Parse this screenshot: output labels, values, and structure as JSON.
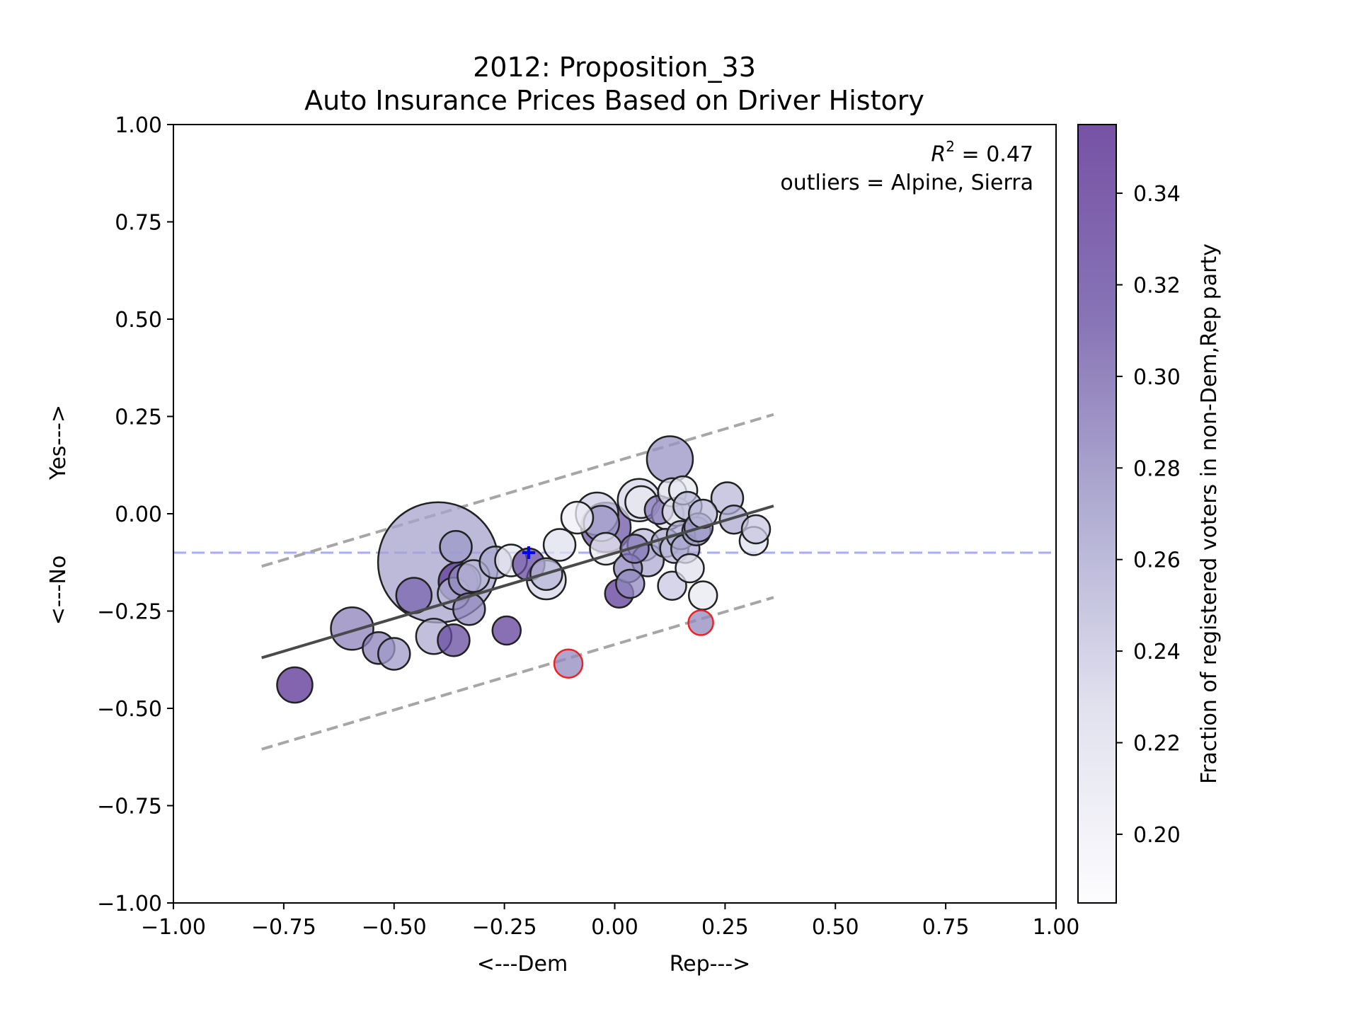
{
  "chart_data": {
    "type": "scatter",
    "title": "2012: Proposition_33",
    "subtitle": "Auto Insurance Prices Based on Driver History",
    "xlabel_left": "<---Dem",
    "xlabel_right": "Rep--->",
    "ylabel_bottom": "<---No",
    "ylabel_top": "Yes--->",
    "xlim": [
      -1.0,
      1.0
    ],
    "ylim": [
      -1.0,
      1.0
    ],
    "xticks": [
      "−1.00",
      "−0.75",
      "−0.50",
      "−0.25",
      "0.00",
      "0.25",
      "0.50",
      "0.75",
      "1.00"
    ],
    "yticks": [
      "−1.00",
      "−0.75",
      "−0.50",
      "−0.25",
      "0.00",
      "0.25",
      "0.50",
      "0.75",
      "1.00"
    ],
    "annotation_r2_prefix": "R",
    "annotation_r2_sup": "2",
    "annotation_r2_value": " = 0.47",
    "annotation_outliers": "outliers = Alpine, Sierra",
    "colorbar": {
      "label": "Fraction of registered voters in non-Dem,Rep party",
      "range": [
        0.185,
        0.355
      ],
      "ticks": [
        "0.20",
        "0.22",
        "0.24",
        "0.26",
        "0.28",
        "0.30",
        "0.32",
        "0.34"
      ],
      "colors": [
        "#fcfbfd",
        "#dadaeb",
        "#9e9ac8",
        "#6a51a3",
        "#54278f"
      ]
    },
    "fit_line": {
      "x": [
        -0.8,
        0.36
      ],
      "y": [
        -0.37,
        0.02
      ],
      "color": "#4a4a4a"
    },
    "upper_band": {
      "x": [
        -0.8,
        0.36
      ],
      "y": [
        -0.135,
        0.255
      ],
      "color": "#a6a6a6"
    },
    "lower_band": {
      "x": [
        -0.8,
        0.36
      ],
      "y": [
        -0.605,
        -0.215
      ],
      "color": "#a6a6a6"
    },
    "reference_line": {
      "y": -0.1,
      "color": "#aaaaff"
    },
    "reference_marker": {
      "x": -0.195,
      "y": -0.1,
      "symbol": "+",
      "color": "#0000ff"
    },
    "points": [
      {
        "x": -0.4,
        "y": -0.125,
        "c": 0.265,
        "s": 34
      },
      {
        "x": -0.725,
        "y": -0.44,
        "c": 0.345,
        "s": 10
      },
      {
        "x": -0.595,
        "y": -0.295,
        "c": 0.285,
        "s": 12
      },
      {
        "x": -0.535,
        "y": -0.345,
        "c": 0.285,
        "s": 9
      },
      {
        "x": -0.5,
        "y": -0.36,
        "c": 0.27,
        "s": 9
      },
      {
        "x": -0.455,
        "y": -0.21,
        "c": 0.3,
        "s": 10
      },
      {
        "x": -0.41,
        "y": -0.315,
        "c": 0.26,
        "s": 10
      },
      {
        "x": -0.365,
        "y": -0.325,
        "c": 0.32,
        "s": 9
      },
      {
        "x": -0.365,
        "y": -0.205,
        "c": 0.25,
        "s": 9
      },
      {
        "x": -0.36,
        "y": -0.085,
        "c": 0.27,
        "s": 9
      },
      {
        "x": -0.355,
        "y": -0.175,
        "c": 0.335,
        "s": 11
      },
      {
        "x": -0.34,
        "y": -0.17,
        "c": 0.28,
        "s": 9
      },
      {
        "x": -0.33,
        "y": -0.245,
        "c": 0.28,
        "s": 9
      },
      {
        "x": -0.32,
        "y": -0.16,
        "c": 0.25,
        "s": 9
      },
      {
        "x": -0.27,
        "y": -0.125,
        "c": 0.26,
        "s": 9
      },
      {
        "x": -0.245,
        "y": -0.3,
        "c": 0.33,
        "s": 8
      },
      {
        "x": -0.235,
        "y": -0.12,
        "c": 0.21,
        "s": 9
      },
      {
        "x": -0.195,
        "y": -0.13,
        "c": 0.32,
        "s": 9
      },
      {
        "x": -0.155,
        "y": -0.17,
        "c": 0.23,
        "s": 11
      },
      {
        "x": -0.155,
        "y": -0.155,
        "c": 0.25,
        "s": 9
      },
      {
        "x": -0.125,
        "y": -0.08,
        "c": 0.22,
        "s": 9
      },
      {
        "x": -0.105,
        "y": -0.385,
        "c": 0.28,
        "s": 8,
        "outlier": true
      },
      {
        "x": -0.085,
        "y": -0.01,
        "c": 0.2,
        "s": 9
      },
      {
        "x": -0.04,
        "y": 0.0,
        "c": 0.235,
        "s": 12
      },
      {
        "x": -0.03,
        "y": -0.025,
        "c": 0.27,
        "s": 10
      },
      {
        "x": -0.02,
        "y": -0.035,
        "c": 0.31,
        "s": 14
      },
      {
        "x": -0.02,
        "y": -0.09,
        "c": 0.21,
        "s": 9
      },
      {
        "x": 0.01,
        "y": -0.205,
        "c": 0.335,
        "s": 8
      },
      {
        "x": 0.03,
        "y": -0.14,
        "c": 0.28,
        "s": 8
      },
      {
        "x": 0.035,
        "y": -0.18,
        "c": 0.28,
        "s": 8
      },
      {
        "x": 0.045,
        "y": -0.09,
        "c": 0.29,
        "s": 8
      },
      {
        "x": 0.055,
        "y": 0.035,
        "c": 0.23,
        "s": 12
      },
      {
        "x": 0.06,
        "y": 0.03,
        "c": 0.21,
        "s": 9
      },
      {
        "x": 0.065,
        "y": -0.08,
        "c": 0.25,
        "s": 9
      },
      {
        "x": 0.075,
        "y": -0.12,
        "c": 0.26,
        "s": 9
      },
      {
        "x": 0.1,
        "y": 0.01,
        "c": 0.29,
        "s": 8
      },
      {
        "x": 0.115,
        "y": -0.075,
        "c": 0.26,
        "s": 8
      },
      {
        "x": 0.12,
        "y": 0.0,
        "c": 0.22,
        "s": 9
      },
      {
        "x": 0.125,
        "y": 0.14,
        "c": 0.275,
        "s": 13
      },
      {
        "x": 0.13,
        "y": 0.055,
        "c": 0.22,
        "s": 8
      },
      {
        "x": 0.13,
        "y": -0.185,
        "c": 0.24,
        "s": 8
      },
      {
        "x": 0.135,
        "y": -0.09,
        "c": 0.25,
        "s": 8
      },
      {
        "x": 0.14,
        "y": 0.005,
        "c": 0.21,
        "s": 8
      },
      {
        "x": 0.15,
        "y": -0.055,
        "c": 0.26,
        "s": 8
      },
      {
        "x": 0.155,
        "y": 0.06,
        "c": 0.21,
        "s": 8
      },
      {
        "x": 0.16,
        "y": -0.09,
        "c": 0.26,
        "s": 8
      },
      {
        "x": 0.165,
        "y": 0.02,
        "c": 0.25,
        "s": 8
      },
      {
        "x": 0.17,
        "y": -0.14,
        "c": 0.22,
        "s": 8
      },
      {
        "x": 0.185,
        "y": -0.045,
        "c": 0.27,
        "s": 8
      },
      {
        "x": 0.19,
        "y": -0.035,
        "c": 0.27,
        "s": 8
      },
      {
        "x": 0.195,
        "y": -0.28,
        "c": 0.28,
        "s": 7,
        "outlier": true
      },
      {
        "x": 0.2,
        "y": -0.21,
        "c": 0.21,
        "s": 8
      },
      {
        "x": 0.2,
        "y": 0.0,
        "c": 0.25,
        "s": 8
      },
      {
        "x": 0.255,
        "y": 0.04,
        "c": 0.25,
        "s": 9
      },
      {
        "x": 0.27,
        "y": -0.015,
        "c": 0.26,
        "s": 8
      },
      {
        "x": 0.315,
        "y": -0.07,
        "c": 0.22,
        "s": 8
      },
      {
        "x": 0.32,
        "y": -0.04,
        "c": 0.24,
        "s": 8
      }
    ]
  }
}
